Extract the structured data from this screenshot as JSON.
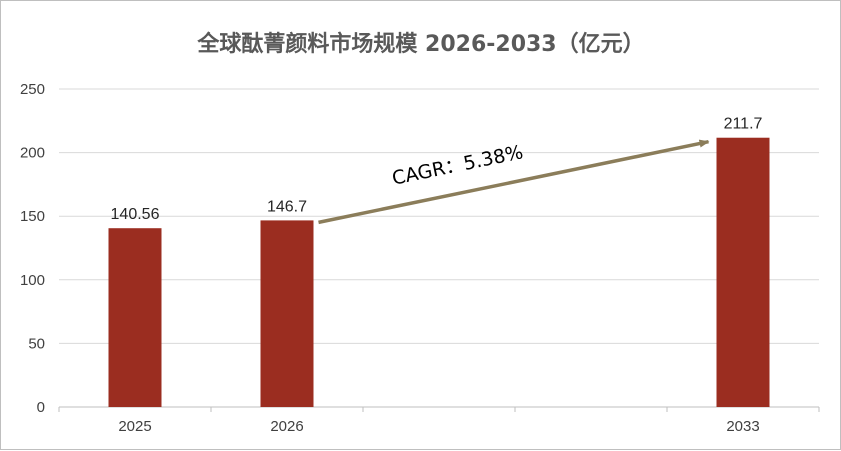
{
  "chart_data": {
    "type": "bar",
    "title": "全球酞菁颜料市场规模 2026-2033（亿元）",
    "xlabel": "",
    "ylabel": "",
    "categories": [
      "2025",
      "2026",
      "",
      "",
      "2033"
    ],
    "values": [
      140.56,
      146.7,
      null,
      null,
      211.7
    ],
    "data_labels": [
      "140.56",
      "146.7",
      "",
      "",
      "211.7"
    ],
    "ylim": [
      0,
      250
    ],
    "yticks": [
      0,
      50,
      100,
      150,
      200,
      250
    ],
    "grid": true,
    "legend": "none",
    "bar_color": "#9b2d20",
    "arrow_color": "#8b7d5a",
    "annotation": {
      "text": "CAGR：5.38%",
      "from_category": 1,
      "to_category": 4
    }
  }
}
